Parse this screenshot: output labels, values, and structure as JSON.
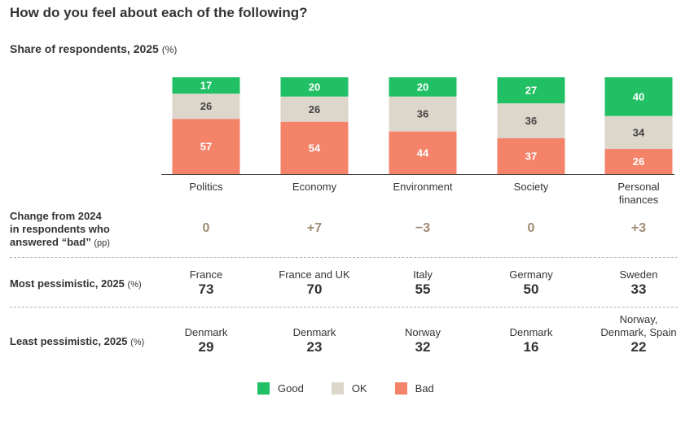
{
  "title": "How do you feel about each of the following?",
  "subtitle": "Share of respondents, 2025",
  "subtitle_unit": "(%)",
  "colors": {
    "good": "#21c064",
    "ok": "#ddd6cb",
    "bad": "#f4836a",
    "change": "#a08b73"
  },
  "chart_data": {
    "type": "bar",
    "stacked": true,
    "categories": [
      "Politics",
      "Economy",
      "Environment",
      "Society",
      "Personal finances"
    ],
    "series": [
      {
        "name": "Good",
        "values": [
          17,
          20,
          20,
          27,
          40
        ]
      },
      {
        "name": "OK",
        "values": [
          26,
          26,
          36,
          36,
          34
        ]
      },
      {
        "name": "Bad",
        "values": [
          57,
          54,
          44,
          37,
          26
        ]
      }
    ],
    "ylim": [
      0,
      100
    ],
    "grid": false,
    "legend": "bottom"
  },
  "rows": {
    "change": {
      "label_lines": [
        "Change from 2024",
        "in respondents who",
        "answered “bad”"
      ],
      "label_unit": "(pp)",
      "values": [
        "0",
        "+7",
        "−3",
        "0",
        "+3"
      ]
    },
    "most": {
      "label": "Most pessimistic, 2025",
      "label_unit": "(%)",
      "cells": [
        {
          "country": "France",
          "value": "73"
        },
        {
          "country": "France and UK",
          "value": "70"
        },
        {
          "country": "Italy",
          "value": "55"
        },
        {
          "country": "Germany",
          "value": "50"
        },
        {
          "country": "Sweden",
          "value": "33"
        }
      ]
    },
    "least": {
      "label": "Least pessimistic, 2025",
      "label_unit": "(%)",
      "cells": [
        {
          "country": "Denmark",
          "value": "29"
        },
        {
          "country": "Denmark",
          "value": "23"
        },
        {
          "country": "Norway",
          "value": "32"
        },
        {
          "country": "Denmark",
          "value": "16"
        },
        {
          "country": "Norway, Denmark, Spain",
          "value": "22"
        }
      ]
    }
  }
}
